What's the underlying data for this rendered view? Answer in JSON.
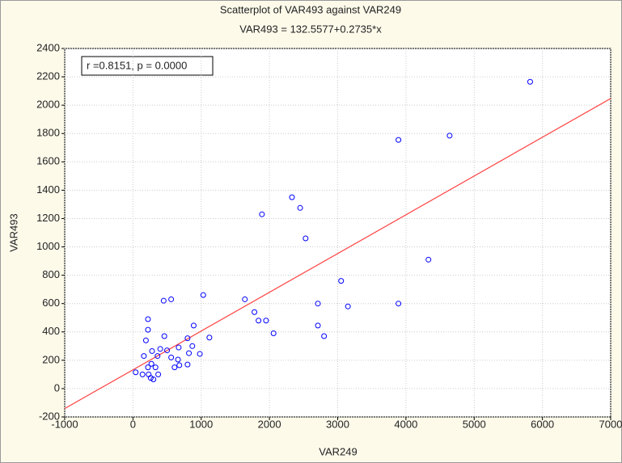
{
  "chart_data": {
    "type": "scatter",
    "title": "Scatterplot of VAR493 against VAR249",
    "subtitle": "VAR493 = 132.5577+0.2735*x",
    "x_label": "VAR249",
    "y_label": "VAR493",
    "annotation": "r =0.8151, p = 0.0000",
    "x": [
      5820,
      4640,
      3890,
      4330,
      3890,
      2330,
      2450,
      1890,
      2530,
      3050,
      3150,
      2710,
      2710,
      2800,
      2060,
      1640,
      1780,
      1840,
      1950,
      1030,
      1120,
      560,
      450,
      220,
      220,
      190,
      160,
      670,
      890,
      800,
      460,
      660,
      680,
      870,
      820,
      980,
      400,
      500,
      560,
      610,
      800,
      360,
      280,
      270,
      330,
      220,
      260,
      140,
      230,
      370,
      300,
      40
    ],
    "values": [
      2165,
      1785,
      1755,
      910,
      600,
      1350,
      1275,
      1230,
      1060,
      760,
      580,
      600,
      445,
      370,
      390,
      630,
      540,
      480,
      480,
      660,
      360,
      630,
      620,
      490,
      415,
      340,
      230,
      290,
      445,
      355,
      370,
      205,
      165,
      300,
      250,
      245,
      280,
      270,
      220,
      150,
      170,
      230,
      265,
      175,
      150,
      150,
      75,
      100,
      100,
      100,
      65,
      115
    ],
    "color": "#0000ff",
    "fit": {
      "intercept": 132.5577,
      "slope": 0.2735,
      "color": "#ff4040"
    },
    "xlim": [
      -1000,
      7000
    ],
    "xticks": [
      -1000,
      0,
      1000,
      2000,
      3000,
      4000,
      5000,
      6000,
      7000
    ],
    "ylim": [
      -200,
      2400
    ],
    "yticks": [
      -200,
      0,
      200,
      400,
      600,
      800,
      1000,
      1200,
      1400,
      1600,
      1800,
      2000,
      2200,
      2400
    ],
    "grid": true
  }
}
